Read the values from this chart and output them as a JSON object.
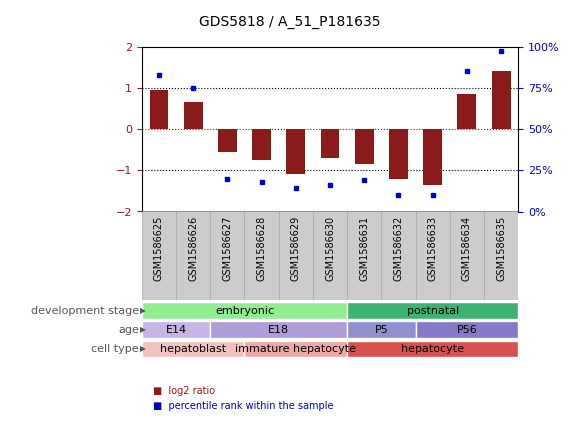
{
  "title": "GDS5818 / A_51_P181635",
  "samples": [
    "GSM1586625",
    "GSM1586626",
    "GSM1586627",
    "GSM1586628",
    "GSM1586629",
    "GSM1586630",
    "GSM1586631",
    "GSM1586632",
    "GSM1586633",
    "GSM1586634",
    "GSM1586635"
  ],
  "log2_ratio": [
    0.95,
    0.65,
    -0.55,
    -0.75,
    -1.1,
    -0.7,
    -0.85,
    -1.2,
    -1.35,
    0.85,
    1.4
  ],
  "percentile": [
    83,
    75,
    20,
    18,
    14,
    16,
    19,
    10,
    10,
    85,
    97
  ],
  "bar_color": "#8B1A1A",
  "dot_color": "#0000CD",
  "left_ylim": [
    -2,
    2
  ],
  "right_ylim": [
    0,
    100
  ],
  "left_yticks": [
    -2,
    -1,
    0,
    1,
    2
  ],
  "right_yticks": [
    0,
    25,
    50,
    75,
    100
  ],
  "right_yticklabels": [
    "0%",
    "25%",
    "50%",
    "75%",
    "100%"
  ],
  "dotted_levels": [
    -1,
    0,
    1
  ],
  "bar_color_red": "#CC2200",
  "dev_stage_embryonic": {
    "label": "embryonic",
    "start": 0,
    "end": 6,
    "color": "#90EE90"
  },
  "dev_stage_postnatal": {
    "label": "postnatal",
    "start": 6,
    "end": 11,
    "color": "#3CB371"
  },
  "age_blocks": [
    {
      "label": "E14",
      "start": 0,
      "end": 2,
      "color": "#C8B4E8"
    },
    {
      "label": "E18",
      "start": 2,
      "end": 6,
      "color": "#B09CD8"
    },
    {
      "label": "P5",
      "start": 6,
      "end": 8,
      "color": "#9090CC"
    },
    {
      "label": "P56",
      "start": 8,
      "end": 11,
      "color": "#8878C8"
    }
  ],
  "cell_blocks": [
    {
      "label": "hepatoblast",
      "start": 0,
      "end": 3,
      "color": "#F4C0C0"
    },
    {
      "label": "immature hepatocyte",
      "start": 3,
      "end": 6,
      "color": "#EFA8A8"
    },
    {
      "label": "hepatocyte",
      "start": 6,
      "end": 11,
      "color": "#D85050"
    }
  ],
  "tick_fontsize": 7,
  "title_fontsize": 10,
  "annot_fontsize": 8,
  "row_label_fontsize": 8,
  "legend_fontsize": 7,
  "row_label_color": "#555555",
  "legend_log2_color": "#8B1A1A",
  "legend_pct_color": "#0000CD",
  "sample_box_color": "#CCCCCC",
  "sample_box_edge": "#AAAAAA"
}
